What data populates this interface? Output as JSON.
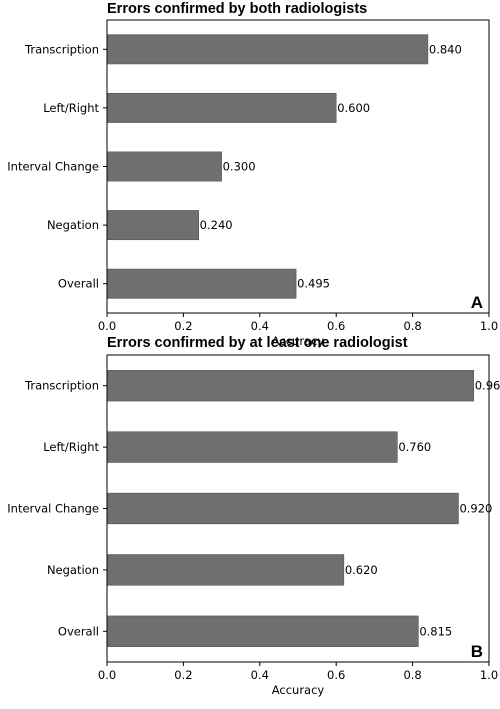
{
  "chart_data": [
    {
      "type": "bar",
      "orientation": "horizontal",
      "title": "Errors confirmed by both radiologists",
      "panel_label": "A",
      "xlabel": "Accuracy",
      "xlim": [
        0,
        1.0
      ],
      "xticks": [
        "0.0",
        "0.2",
        "0.4",
        "0.6",
        "0.8",
        "1.0"
      ],
      "categories": [
        "Transcription",
        "Left/Right",
        "Interval Change",
        "Negation",
        "Overall"
      ],
      "values": [
        0.84,
        0.6,
        0.3,
        0.24,
        0.495
      ],
      "value_labels": [
        "0.840",
        "0.600",
        "0.300",
        "0.240",
        "0.495"
      ],
      "bar_color": "#6f6f6f",
      "grid": false
    },
    {
      "type": "bar",
      "orientation": "horizontal",
      "title": "Errors confirmed by at least one radiologist",
      "panel_label": "B",
      "xlabel": "Accuracy",
      "xlim": [
        0,
        1.0
      ],
      "xticks": [
        "0.0",
        "0.2",
        "0.4",
        "0.6",
        "0.8",
        "1.0"
      ],
      "categories": [
        "Transcription",
        "Left/Right",
        "Interval Change",
        "Negation",
        "Overall"
      ],
      "values": [
        0.96,
        0.76,
        0.92,
        0.62,
        0.815
      ],
      "value_labels": [
        "0.960",
        "0.760",
        "0.920",
        "0.620",
        "0.815"
      ],
      "bar_color": "#6f6f6f",
      "grid": false
    }
  ]
}
